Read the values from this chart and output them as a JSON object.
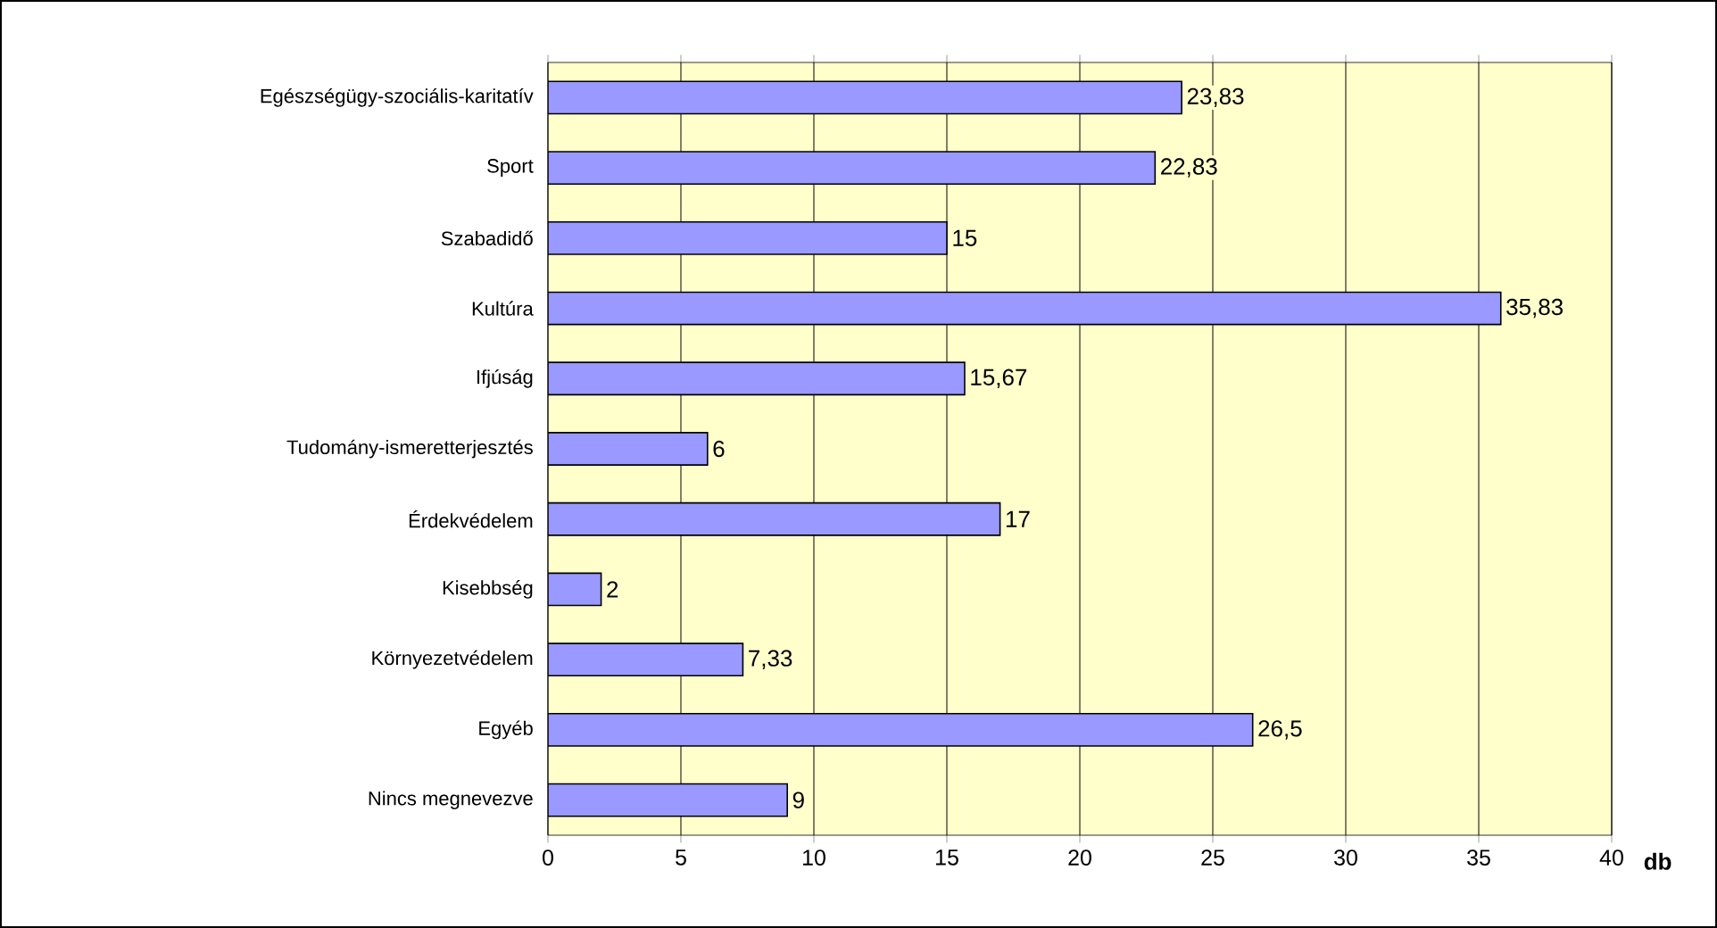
{
  "chart_data": {
    "type": "bar",
    "orientation": "horizontal",
    "xlabel": "db",
    "categories": [
      "Egészségügy-szociális-karitatív",
      "Sport",
      "Szabadidő",
      "Kultúra",
      "Ifjúság",
      "Tudomány-ismeretterjesztés",
      "Érdekvédelem",
      "Kisebbség",
      "Környezetvédelem",
      "Egyéb",
      "Nincs megnevezve"
    ],
    "values": [
      23.83,
      22.83,
      15,
      35.83,
      15.67,
      6,
      17,
      2,
      7.33,
      26.5,
      9
    ],
    "value_labels": [
      "23,83",
      "22,83",
      "15",
      "35,83",
      "15,67",
      "6",
      "17",
      "2",
      "7,33",
      "26,5",
      "9"
    ],
    "color": "#9999ff",
    "xlim": [
      0,
      40
    ],
    "xticks": [
      0,
      5,
      10,
      15,
      20,
      25,
      30,
      35,
      40
    ],
    "grid": "x"
  }
}
